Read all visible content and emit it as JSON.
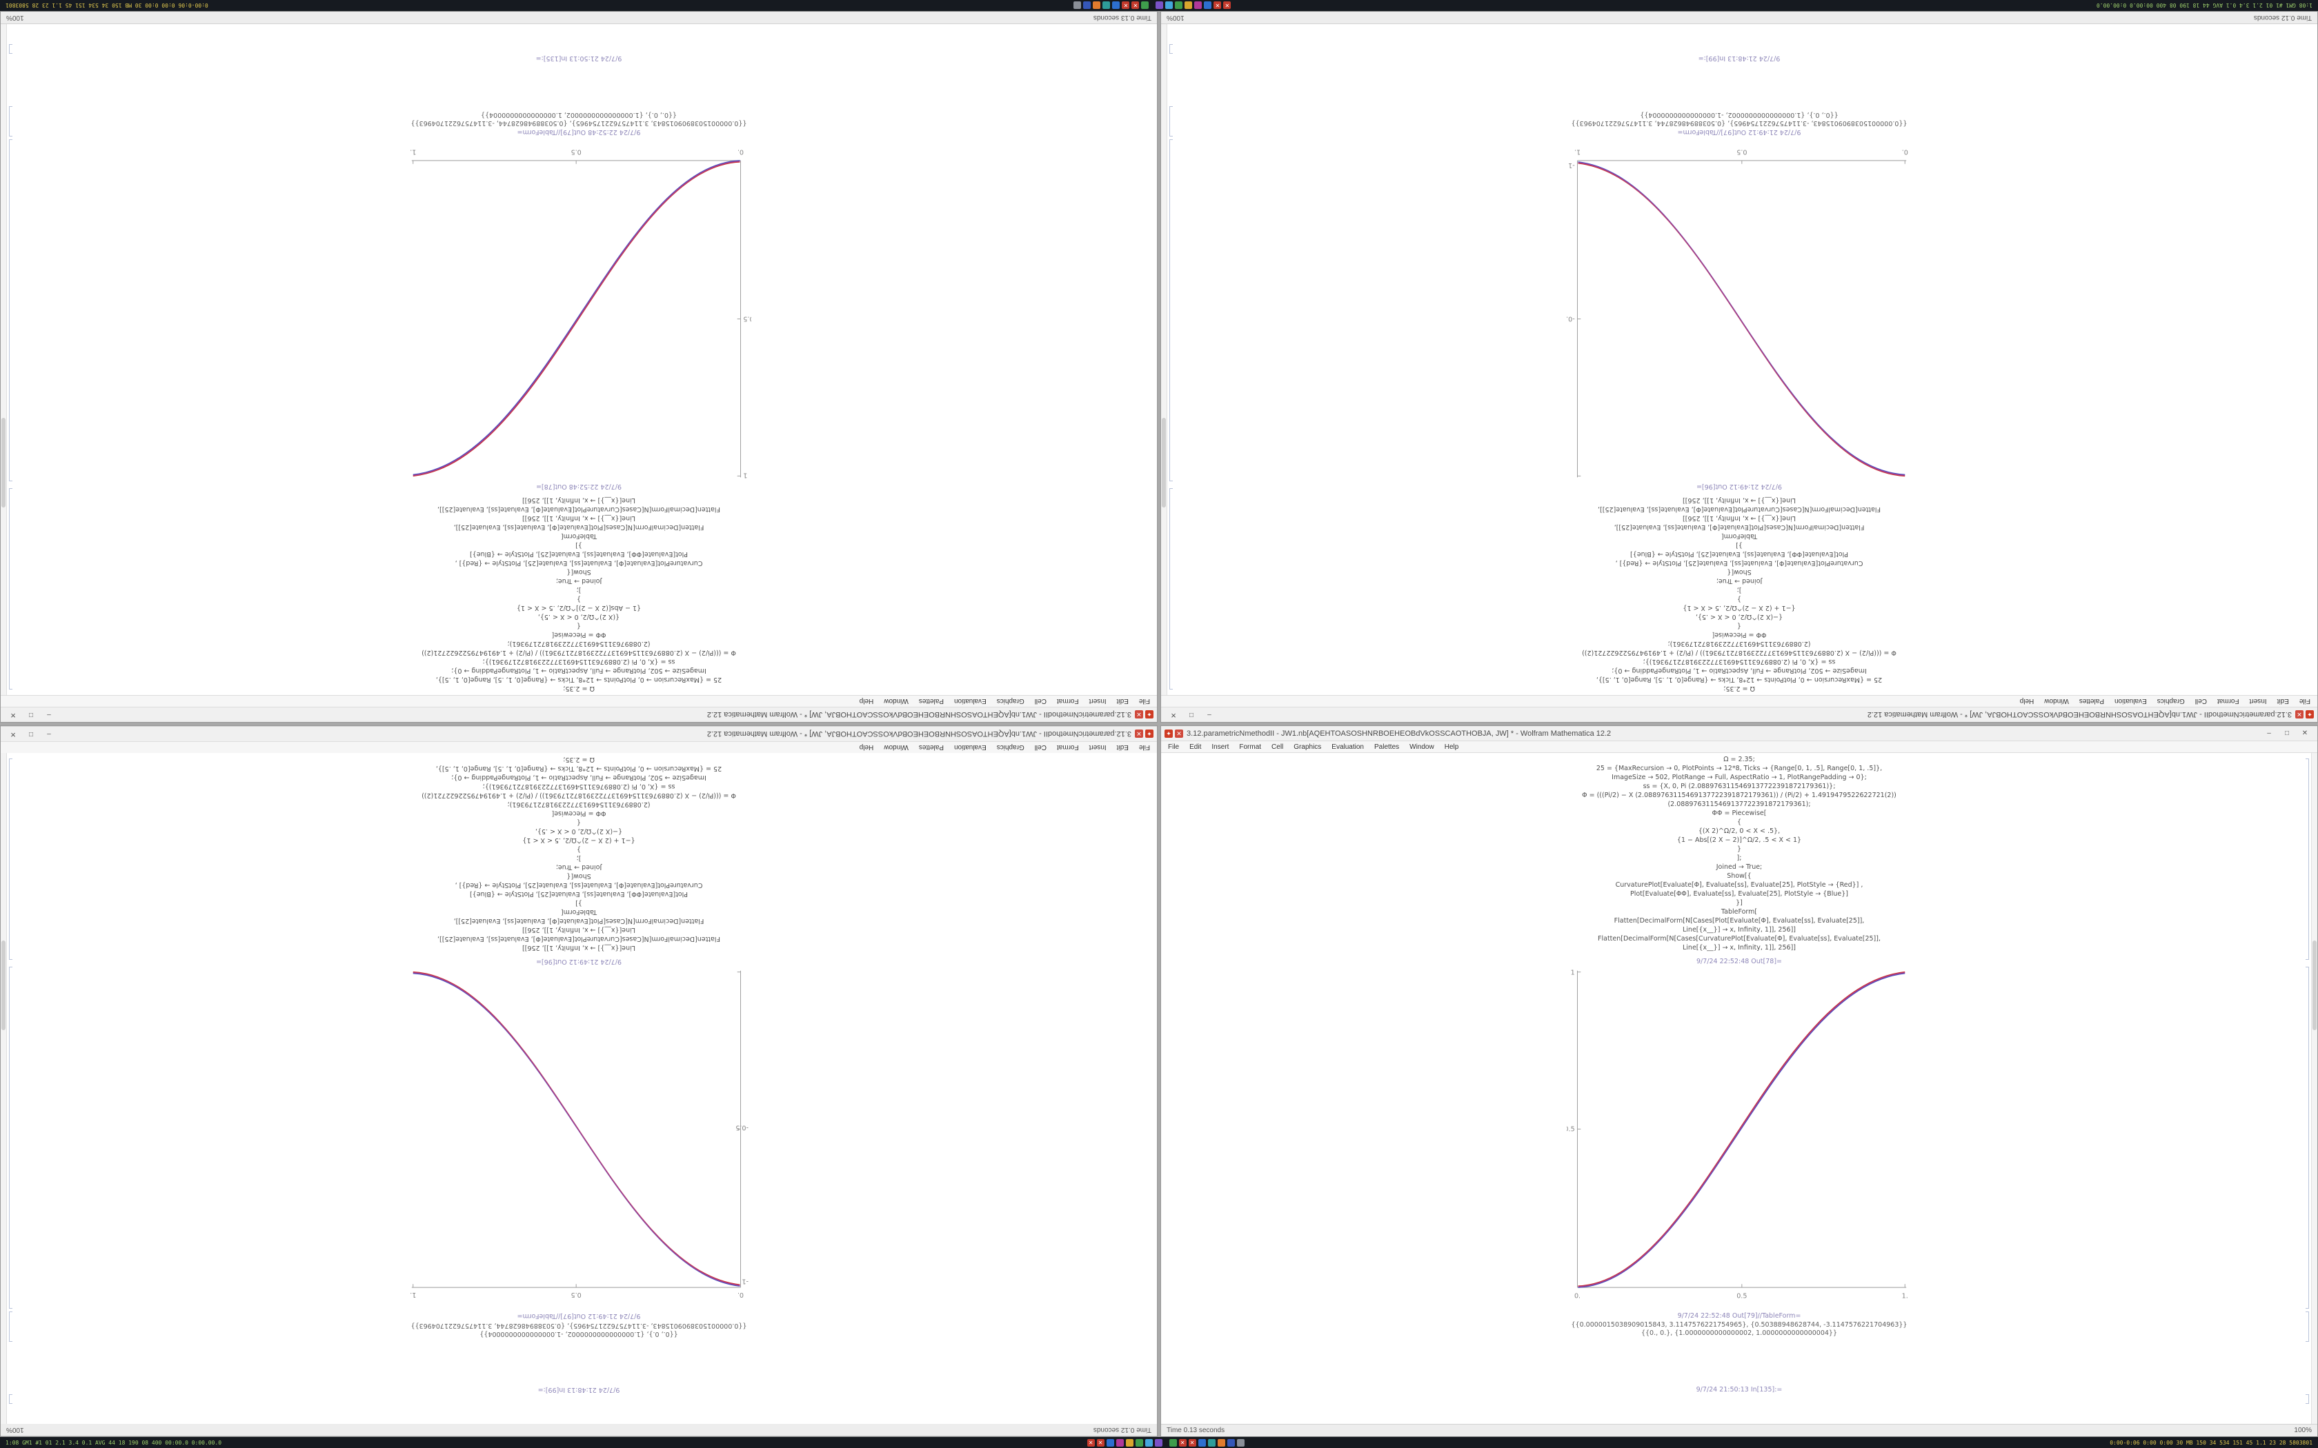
{
  "app": "Wolfram Mathematica 12.2",
  "chrome": {
    "minimize": "–",
    "maximize": "□",
    "close": "✕"
  },
  "titlebar_icons": [
    {
      "name": "mathematica-spikey-icon",
      "color": "#cf3b23",
      "glyph": "✦"
    },
    {
      "name": "notebook-kernel-icon",
      "color": "#d0493b",
      "glyph": "✕"
    }
  ],
  "taskbar": {
    "left_text": "1:08 GM1 #1 01 2.1 3.4 0.1 AVG 44 18 190 08 400 00:00.0 0:00.00.0",
    "right_text": "0:00-0:06 0:00 0:00 30 MB 150 34 534 151 45 1.1 23 28 5803801",
    "apps_left": [
      {
        "name": "alert-red-1",
        "color": "#c43b2d",
        "glyph": "✕"
      },
      {
        "name": "alert-red-2",
        "color": "#c43b2d",
        "glyph": "✕"
      },
      {
        "name": "app-blue",
        "color": "#2d6fd0",
        "glyph": ""
      },
      {
        "name": "app-magenta",
        "color": "#b0399a",
        "glyph": ""
      },
      {
        "name": "app-gold",
        "color": "#d9a62e",
        "glyph": ""
      },
      {
        "name": "app-green",
        "color": "#3f9d4c",
        "glyph": ""
      },
      {
        "name": "app-sky",
        "color": "#44a7dd",
        "glyph": ""
      },
      {
        "name": "app-violet",
        "color": "#7a52c7",
        "glyph": ""
      }
    ],
    "apps_right": [
      {
        "name": "app-green-2",
        "color": "#3f9d4c",
        "glyph": ""
      },
      {
        "name": "alert-red-3",
        "color": "#c43b2d",
        "glyph": "✕"
      },
      {
        "name": "alert-red-4",
        "color": "#c43b2d",
        "glyph": "✕"
      },
      {
        "name": "app-blue-2",
        "color": "#2d6fd0",
        "glyph": ""
      },
      {
        "name": "app-teal",
        "color": "#2e9d9a",
        "glyph": ""
      },
      {
        "name": "app-orange",
        "color": "#e07b2e",
        "glyph": ""
      },
      {
        "name": "app-navy",
        "color": "#3557b8",
        "glyph": ""
      },
      {
        "name": "app-gray",
        "color": "#8a8f98",
        "glyph": ""
      }
    ]
  },
  "notebooks": {
    "a": {
      "title": "3.12.parametricNmethodII - JW1.nb[AQEHTOASOSHNRBOEHEOBdVkOSSCAOTHOBJA, JW] * - Wolfram Mathematica 12.2",
      "menu": [
        "File",
        "Edit",
        "Insert",
        "Format",
        "Cell",
        "Graphics",
        "Evaluation",
        "Palettes",
        "Window",
        "Help"
      ],
      "code_lines": [
        "Ω = 2.35;",
        "25 = {MaxRecursion → 0, PlotPoints → 12*8, Ticks → {Range[0, 1, .5], Range[0, 1, .5]},",
        "ImageSize → 502, PlotRange → Full, AspectRatio → 1, PlotRangePadding → 0};",
        "ss = {X, 0, Pi (2.0889763115469137722391872179361)};",
        "Φ = (((Pi/2) − X (2.0889763115469137722391872179361)) / (Pi/2) + 1.4919479522622721(2))",
        "(2.0889763115469137722391872179361);",
        "ΦΦ = Piecewise[",
        "{",
        "{(X 2)^Ω/2, 0 < X < .5},",
        "{1 − Abs[(2 X − 2)]^Ω/2, .5 < X < 1}",
        "}",
        "];",
        "Joined → True;",
        "Show[{",
        "CurvaturePlot[Evaluate[Φ], Evaluate[ss], Evaluate[25], PlotStyle → {Red}] ,",
        "Plot[Evaluate[ΦΦ], Evaluate[ss], Evaluate[25], PlotStyle → {Blue}]",
        "}]",
        "TableForm[",
        "Flatten[DecimalForm[N[Cases[Plot[Evaluate[Φ], Evaluate[ss], Evaluate[25]],",
        "Line[{x__}] → x, Infinity, 1]], 256]]",
        "Flatten[DecimalForm[N[Cases[CurvaturePlot[Evaluate[Φ], Evaluate[ss], Evaluate[25]],",
        "Line[{x__}] → x, Infinity, 1]], 256]]"
      ],
      "out_plot_label": "9/7/24 22:52:48  Out[78]=",
      "out_table_label": "9/7/24 22:52:48  Out[79]//TableForm=",
      "table_lines": [
        "{{0.0000015038909015843, 3.1147576221754965}, {0.50388948628744, -3.1147576221704963}}",
        "{{0., 0.}, {1.0000000000000002, 1.0000000000000004}}"
      ],
      "next_in_label": "9/7/24 21:50:13  In[135]:=",
      "status_message": "Time 0.13 seconds",
      "zoom": "100%",
      "plot": {
        "type": "line",
        "xticks": [
          "0.",
          "0.5",
          "1."
        ],
        "yticks": [
          "0.5",
          "1"
        ],
        "x_range": [
          0,
          1
        ],
        "y_range": [
          0,
          1
        ],
        "curve_colors": [
          "#cc2a2a",
          "#3a49c4",
          "#a4418e"
        ],
        "points": [
          [
            0,
            0
          ],
          [
            0.1,
            0.011
          ],
          [
            0.2,
            0.058
          ],
          [
            0.3,
            0.15
          ],
          [
            0.4,
            0.296
          ],
          [
            0.5,
            0.5
          ],
          [
            0.6,
            0.704
          ],
          [
            0.7,
            0.85
          ],
          [
            0.8,
            0.942
          ],
          [
            0.9,
            0.989
          ],
          [
            1,
            1
          ]
        ]
      }
    },
    "b": {
      "title": "3.12.parametricNmethodII - JW1.nb[AQEHTOASOSHNRBOEHEOBdVkOSSCAOTHOBJA, JW] * - Wolfram Mathematica 12.2",
      "menu": [
        "File",
        "Edit",
        "Insert",
        "Format",
        "Cell",
        "Graphics",
        "Evaluation",
        "Palettes",
        "Window",
        "Help"
      ],
      "code_lines": [
        "Ω = 2.35;",
        "25 = {MaxRecursion → 0, PlotPoints → 12*8, Ticks → {Range[0, 1, .5], Range[0, 1, .5]},",
        "ImageSize → 502, PlotRange → Full, AspectRatio → 1, PlotRangePadding → 0};",
        "ss = {X, 0, Pi (2.0889763115469137722391872179361)};",
        "Φ = (((Pi/2) − X (2.0889763115469137722391872179361)) / (Pi/2) + 1.4919479522622721(2))",
        "(2.0889763115469137722391872179361);",
        "ΦΦ = Piecewise[",
        "{",
        "{−(X 2)^Ω/2, 0 < X < .5},",
        "{−1 + (2 X − 2)^Ω/2, .5 < X < 1}",
        "}",
        "];",
        "Joined → True;",
        "Show[{",
        "CurvaturePlot[Evaluate[Φ], Evaluate[ss], Evaluate[25], PlotStyle → {Red}] ,",
        "Plot[Evaluate[ΦΦ], Evaluate[ss], Evaluate[25], PlotStyle → {Blue}]",
        "}]",
        "TableForm[",
        "Flatten[DecimalForm[N[Cases[Plot[Evaluate[Φ], Evaluate[ss], Evaluate[25]],",
        "Line[{x__}] → x, Infinity, 1]], 256]]",
        "Flatten[DecimalForm[N[Cases[CurvaturePlot[Evaluate[Φ], Evaluate[ss], Evaluate[25]],",
        "Line[{x__}] → x, Infinity, 1]], 256]]"
      ],
      "out_plot_label": "9/7/24 21:49:12  Out[96]=",
      "out_table_label": "9/7/24 21:49:12  Out[97]//TableForm=",
      "table_lines": [
        "{{0.0000015038909015843, -3.1147576221754965}, {0.50388948628744, 3.1147576221704963}}",
        "{{0., 0.}, {1.0000000000000002, -1.0000000000000004}}"
      ],
      "next_in_label": "9/7/24 21:48:13  In[99]:=",
      "status_message": "Time 0.12 seconds",
      "zoom": "100%",
      "plot": {
        "type": "line",
        "xticks": [
          "0.",
          "0.5",
          "1."
        ],
        "yticks": [
          "-0.5",
          "-1"
        ],
        "x_range": [
          0,
          1
        ],
        "y_range": [
          -1,
          0
        ],
        "curve_colors": [
          "#cc2a2a",
          "#3a49c4",
          "#a4418e"
        ],
        "points": [
          [
            0,
            0
          ],
          [
            0.1,
            -0.011
          ],
          [
            0.2,
            -0.058
          ],
          [
            0.3,
            -0.15
          ],
          [
            0.4,
            -0.296
          ],
          [
            0.5,
            -0.5
          ],
          [
            0.6,
            -0.704
          ],
          [
            0.7,
            -0.85
          ],
          [
            0.8,
            -0.942
          ],
          [
            0.9,
            -0.989
          ],
          [
            1,
            -1
          ]
        ]
      }
    }
  }
}
